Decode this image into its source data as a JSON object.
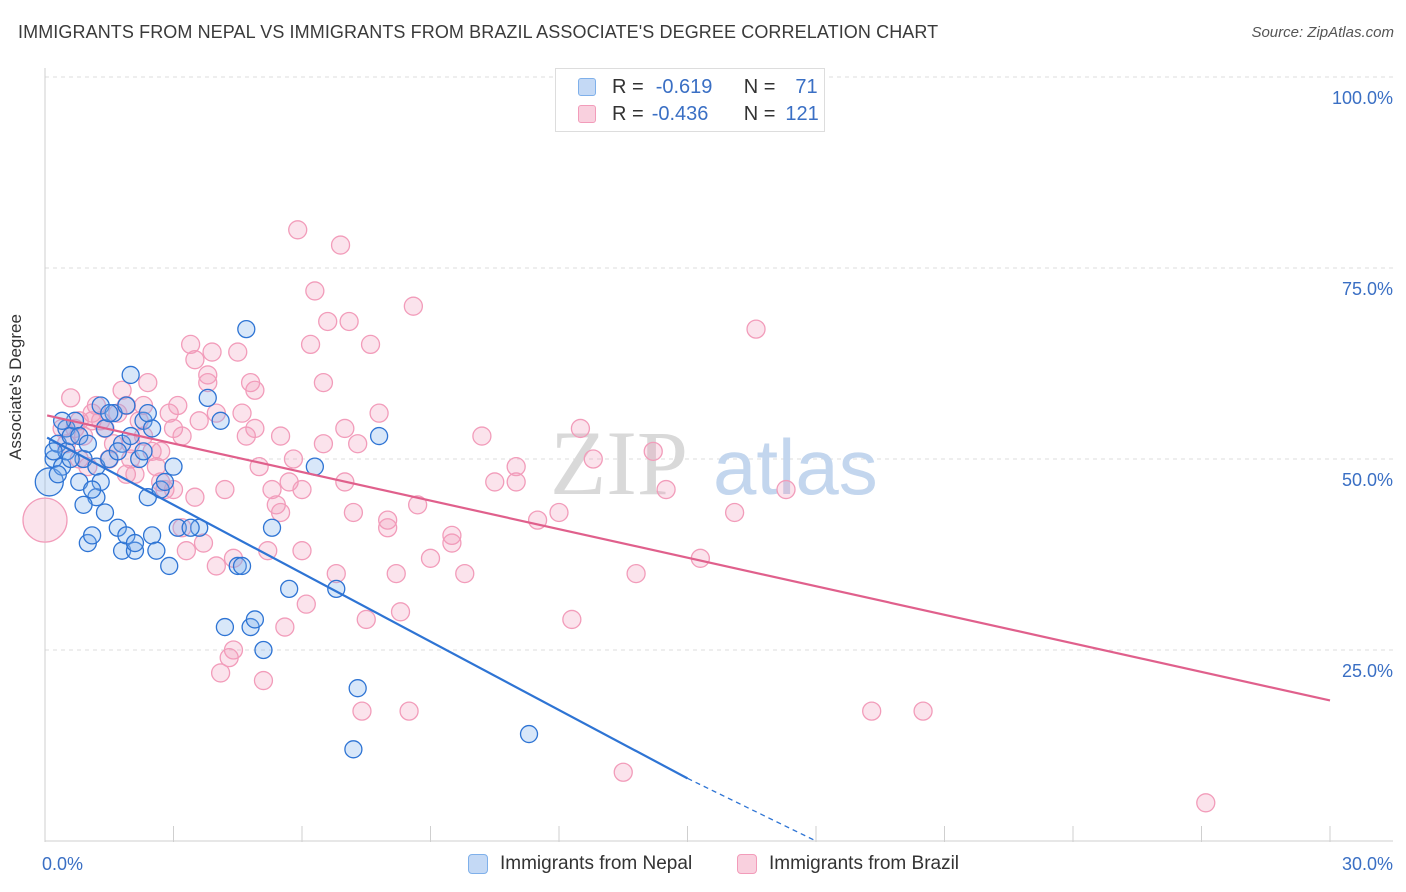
{
  "header": {
    "title": "IMMIGRANTS FROM NEPAL VS IMMIGRANTS FROM BRAZIL ASSOCIATE'S DEGREE CORRELATION CHART",
    "source": "Source: ZipAtlas.com"
  },
  "legend": {
    "nepal": {
      "r_label": "R =",
      "r_value": "-0.619",
      "n_label": "N =",
      "n_value": "71"
    },
    "brazil": {
      "r_label": "R =",
      "r_value": "-0.436",
      "n_label": "N =",
      "n_value": "121"
    }
  },
  "watermark": {
    "zip": "ZIP",
    "atlas": "atlas"
  },
  "chart_data": {
    "type": "scatter",
    "title": "IMMIGRANTS FROM NEPAL VS IMMIGRANTS FROM BRAZIL ASSOCIATE'S DEGREE CORRELATION CHART",
    "xlabel": "",
    "ylabel": "Associate's Degree",
    "xlim": [
      0,
      30
    ],
    "ylim": [
      0,
      100
    ],
    "x_tick_labels": [
      "0.0%",
      "30.0%"
    ],
    "y_tick_labels": [
      "25.0%",
      "50.0%",
      "75.0%",
      "100.0%"
    ],
    "y_ticks": [
      25,
      50,
      75,
      100
    ],
    "colors": {
      "nepal": "#7fb0ea",
      "nepal_line": "#2e74d4",
      "brazil": "#f29cba",
      "brazil_line": "#e0608c"
    },
    "series": [
      {
        "name": "Immigrants from Nepal",
        "trend": {
          "x": [
            0.05,
            15.0
          ],
          "y": [
            52.8,
            8.2
          ],
          "dashed_to": [
            18.0,
            0
          ]
        },
        "points": [
          [
            0.1,
            47
          ],
          [
            0.2,
            50
          ],
          [
            0.3,
            52
          ],
          [
            0.4,
            49
          ],
          [
            0.5,
            51
          ],
          [
            0.5,
            54
          ],
          [
            0.6,
            53
          ],
          [
            0.7,
            55
          ],
          [
            0.8,
            47
          ],
          [
            0.8,
            53
          ],
          [
            0.9,
            50
          ],
          [
            1.0,
            52
          ],
          [
            1.0,
            39
          ],
          [
            1.1,
            40
          ],
          [
            1.2,
            49
          ],
          [
            1.2,
            45
          ],
          [
            1.3,
            57
          ],
          [
            1.3,
            47
          ],
          [
            1.4,
            43
          ],
          [
            1.4,
            54
          ],
          [
            1.5,
            50
          ],
          [
            1.6,
            56
          ],
          [
            1.7,
            41
          ],
          [
            1.8,
            52
          ],
          [
            1.8,
            38
          ],
          [
            1.9,
            40
          ],
          [
            1.9,
            57
          ],
          [
            2.0,
            53
          ],
          [
            2.0,
            61
          ],
          [
            2.1,
            38
          ],
          [
            2.2,
            50
          ],
          [
            2.3,
            55
          ],
          [
            2.3,
            51
          ],
          [
            2.4,
            45
          ],
          [
            2.5,
            54
          ],
          [
            2.5,
            40
          ],
          [
            2.6,
            38
          ],
          [
            2.7,
            46
          ],
          [
            2.8,
            47
          ],
          [
            2.9,
            36
          ],
          [
            3.0,
            49
          ],
          [
            3.1,
            41
          ],
          [
            3.6,
            41
          ],
          [
            3.8,
            58
          ],
          [
            4.1,
            55
          ],
          [
            4.2,
            28
          ],
          [
            4.5,
            36
          ],
          [
            4.7,
            67
          ],
          [
            4.8,
            28
          ],
          [
            4.9,
            29
          ],
          [
            5.1,
            25
          ],
          [
            5.3,
            41
          ],
          [
            5.7,
            33
          ],
          [
            6.3,
            49
          ],
          [
            6.8,
            33
          ],
          [
            7.3,
            20
          ],
          [
            7.2,
            12
          ],
          [
            7.8,
            53
          ],
          [
            11.3,
            14
          ],
          [
            0.2,
            51
          ],
          [
            0.3,
            48
          ],
          [
            0.4,
            55
          ],
          [
            0.6,
            50
          ],
          [
            0.9,
            44
          ],
          [
            1.1,
            46
          ],
          [
            1.5,
            56
          ],
          [
            1.7,
            51
          ],
          [
            2.1,
            39
          ],
          [
            2.4,
            56
          ],
          [
            3.4,
            41
          ],
          [
            4.6,
            36
          ]
        ]
      },
      {
        "name": "Immigrants from Brazil",
        "trend": {
          "x": [
            0.05,
            30.0
          ],
          "y": [
            55.7,
            18.4
          ]
        },
        "points": [
          [
            0.0,
            42
          ],
          [
            0.4,
            54
          ],
          [
            0.6,
            58
          ],
          [
            0.7,
            54
          ],
          [
            0.8,
            55
          ],
          [
            0.9,
            53
          ],
          [
            1.0,
            49
          ],
          [
            1.1,
            56
          ],
          [
            1.2,
            57
          ],
          [
            1.3,
            55
          ],
          [
            1.5,
            50
          ],
          [
            1.6,
            52
          ],
          [
            1.7,
            56
          ],
          [
            1.8,
            59
          ],
          [
            1.9,
            48
          ],
          [
            2.0,
            52
          ],
          [
            2.1,
            48
          ],
          [
            2.2,
            55
          ],
          [
            2.3,
            53
          ],
          [
            2.4,
            60
          ],
          [
            2.5,
            51
          ],
          [
            2.6,
            49
          ],
          [
            2.7,
            47
          ],
          [
            2.8,
            46
          ],
          [
            2.9,
            56
          ],
          [
            3.0,
            54
          ],
          [
            3.1,
            57
          ],
          [
            3.2,
            53
          ],
          [
            3.3,
            38
          ],
          [
            3.4,
            65
          ],
          [
            3.5,
            63
          ],
          [
            3.6,
            55
          ],
          [
            3.7,
            39
          ],
          [
            3.8,
            61
          ],
          [
            3.9,
            64
          ],
          [
            4.0,
            36
          ],
          [
            4.0,
            56
          ],
          [
            4.1,
            22
          ],
          [
            4.2,
            46
          ],
          [
            4.3,
            24
          ],
          [
            4.4,
            25
          ],
          [
            4.5,
            64
          ],
          [
            4.6,
            56
          ],
          [
            4.7,
            53
          ],
          [
            4.8,
            60
          ],
          [
            4.9,
            59
          ],
          [
            5.0,
            49
          ],
          [
            5.1,
            21
          ],
          [
            5.2,
            38
          ],
          [
            5.3,
            46
          ],
          [
            5.4,
            44
          ],
          [
            5.5,
            53
          ],
          [
            5.6,
            28
          ],
          [
            5.7,
            47
          ],
          [
            5.8,
            50
          ],
          [
            5.9,
            80
          ],
          [
            6.0,
            46
          ],
          [
            6.1,
            31
          ],
          [
            6.2,
            65
          ],
          [
            6.3,
            72
          ],
          [
            6.5,
            60
          ],
          [
            6.6,
            68
          ],
          [
            6.8,
            35
          ],
          [
            6.9,
            78
          ],
          [
            7.0,
            47
          ],
          [
            7.1,
            68
          ],
          [
            7.2,
            43
          ],
          [
            7.3,
            52
          ],
          [
            7.4,
            17
          ],
          [
            7.5,
            29
          ],
          [
            7.6,
            65
          ],
          [
            7.8,
            56
          ],
          [
            8.0,
            42
          ],
          [
            8.2,
            35
          ],
          [
            8.3,
            30
          ],
          [
            8.5,
            17
          ],
          [
            8.6,
            70
          ],
          [
            8.7,
            44
          ],
          [
            9.0,
            37
          ],
          [
            9.5,
            40
          ],
          [
            9.8,
            35
          ],
          [
            10.2,
            53
          ],
          [
            10.5,
            47
          ],
          [
            11.0,
            47
          ],
          [
            11.5,
            42
          ],
          [
            12.0,
            43
          ],
          [
            12.3,
            29
          ],
          [
            12.5,
            54
          ],
          [
            12.8,
            50
          ],
          [
            13.5,
            9
          ],
          [
            13.8,
            35
          ],
          [
            14.2,
            51
          ],
          [
            14.5,
            46
          ],
          [
            15.3,
            37
          ],
          [
            16.1,
            43
          ],
          [
            16.6,
            67
          ],
          [
            17.3,
            46
          ],
          [
            19.3,
            17
          ],
          [
            20.5,
            17
          ],
          [
            27.1,
            5
          ],
          [
            3.5,
            45
          ],
          [
            4.4,
            37
          ],
          [
            2.0,
            50
          ],
          [
            1.4,
            54
          ],
          [
            0.8,
            50
          ],
          [
            5.5,
            43
          ],
          [
            6.0,
            38
          ],
          [
            7.0,
            54
          ],
          [
            9.5,
            39
          ],
          [
            3.0,
            46
          ],
          [
            4.9,
            54
          ],
          [
            2.7,
            51
          ],
          [
            1.1,
            55
          ],
          [
            0.5,
            52
          ],
          [
            1.9,
            57
          ],
          [
            3.8,
            60
          ],
          [
            6.5,
            52
          ],
          [
            8.0,
            41
          ],
          [
            11.0,
            49
          ],
          [
            2.3,
            57
          ],
          [
            3.2,
            41
          ]
        ]
      }
    ]
  },
  "bottom_legend": {
    "nepal_label": "Immigrants from Nepal",
    "brazil_label": "Immigrants from Brazil"
  }
}
